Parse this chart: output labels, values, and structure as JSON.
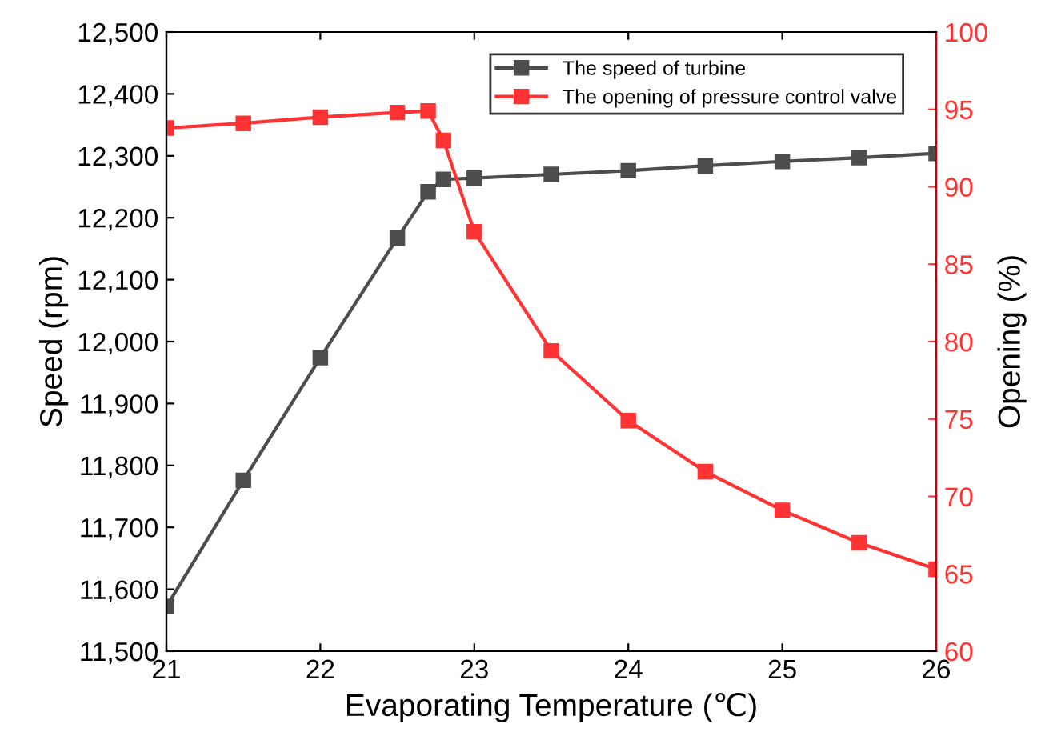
{
  "chart_data": {
    "type": "line",
    "xlabel": "Evaporating Temperature (℃)",
    "ylabel": "Speed (rpm)",
    "y2label": "Opening (%)",
    "x": [
      21,
      21.5,
      22,
      22.5,
      22.7,
      22.8,
      23,
      23.5,
      24,
      24.5,
      25,
      25.5,
      26
    ],
    "series": [
      {
        "name": "The speed of turbine",
        "color": "#4d4d4d",
        "values": [
          11572,
          11776,
          11974,
          12167,
          12242,
          12262,
          12264,
          12270,
          12276,
          12284,
          12291,
          12297,
          12304
        ]
      },
      {
        "name": "The opening of pressure control valve",
        "color": "#ff3333",
        "axis": "y2",
        "values": [
          93.8,
          94.1,
          94.5,
          94.8,
          94.9,
          93.0,
          87.1,
          79.4,
          74.9,
          71.6,
          69.1,
          67.0,
          65.3
        ]
      }
    ],
    "xlim": [
      21,
      26
    ],
    "xticks": [
      21,
      22,
      23,
      24,
      25,
      26
    ],
    "ylim": [
      11500,
      12500
    ],
    "yticks": [
      {
        "value": 11500,
        "label": "11,500"
      },
      {
        "value": 11600,
        "label": "11,600"
      },
      {
        "value": 11700,
        "label": "11,700"
      },
      {
        "value": 11800,
        "label": "11,800"
      },
      {
        "value": 11900,
        "label": "11,900"
      },
      {
        "value": 12000,
        "label": "12,000"
      },
      {
        "value": 12100,
        "label": "12,100"
      },
      {
        "value": 12200,
        "label": "12,200"
      },
      {
        "value": 12300,
        "label": "12,300"
      },
      {
        "value": 12400,
        "label": "12,400"
      },
      {
        "value": 12500,
        "label": "12,500"
      }
    ],
    "y2lim": [
      60,
      100
    ],
    "y2ticks": [
      60,
      65,
      70,
      75,
      80,
      85,
      90,
      95,
      100
    ],
    "marker": "square",
    "line_style": "solid",
    "grid": false,
    "legend": "top right"
  }
}
